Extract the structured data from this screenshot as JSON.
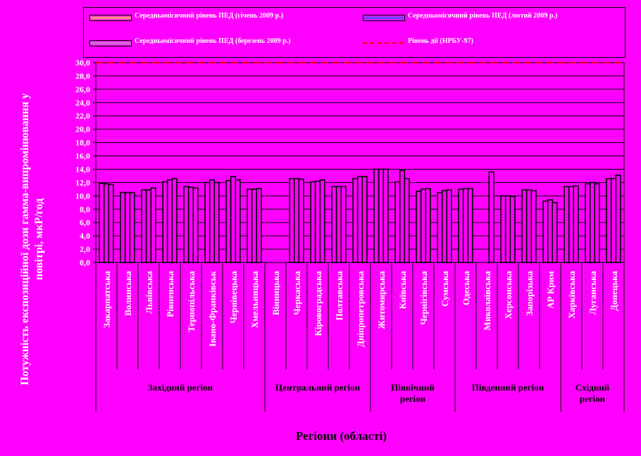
{
  "legend": {
    "jan": "Середньомісячний рівень ПЕД (січень 2009 р.)",
    "feb": "Середньомісячний рівень ПЕД (лютий 2009 р.)",
    "mar": "Середньомісячний рівень ПЕД (березень 2009 р.)",
    "level": "Рівень дії (НРБУ-97)"
  },
  "colors": {
    "background": "#ff00ff",
    "bar_fill": "#ff00ff",
    "bar_edge": "#000000",
    "level_line": "#ff0000",
    "axis_text": "#ffffff"
  },
  "chart_data": {
    "type": "bar",
    "title": "",
    "ylabel": "Потужність експозиційної дози гамма-випромінювання у повітрі, мкР/год",
    "xlabel": "Регіони (області)",
    "ylim": [
      0,
      30
    ],
    "yticks": [
      "0,0",
      "2,0",
      "4,0",
      "6,0",
      "8,0",
      "10,0",
      "12,0",
      "14,0",
      "16,0",
      "18,0",
      "20,0",
      "22,0",
      "24,0",
      "26,0",
      "28,0",
      "30,0"
    ],
    "categories": [
      "Закарпатська",
      "Волинська",
      "Львівська",
      "Рівненська",
      "Тернопільська",
      "Івано-Франківськ",
      "Чернівецька",
      "Хмельницька",
      "Вінницька",
      "Черкаська",
      "Кіровоградська",
      "Полтавська",
      "Дніпропетровська",
      "Житомирська",
      "Київська",
      "Чернігівська",
      "Сумська",
      "Одеська",
      "Миколаївська",
      "Херсонська",
      "Запорізька",
      "АР Крим",
      "Харківська",
      "Луганська",
      "Донецька"
    ],
    "series": [
      {
        "name": "Середньомісячний рівень ПЕД (січень 2009 р.)",
        "values": [
          11.9,
          10.5,
          10.9,
          12.1,
          11.4,
          12.0,
          12.3,
          11.0,
          null,
          12.6,
          12.1,
          11.4,
          12.6,
          14.0,
          12.1,
          10.7,
          10.5,
          11.0,
          null,
          10.0,
          10.9,
          9.2,
          11.4,
          11.8,
          12.6
        ]
      },
      {
        "name": "Середньомісячний рівень ПЕД (лютий 2009 р.)",
        "values": [
          11.8,
          10.5,
          10.9,
          12.4,
          11.3,
          12.4,
          12.9,
          11.0,
          null,
          12.6,
          12.2,
          11.4,
          12.9,
          14.0,
          13.8,
          11.0,
          10.8,
          11.1,
          null,
          10.0,
          10.9,
          9.4,
          11.4,
          12.0,
          12.6
        ]
      },
      {
        "name": "Середньомісячний рівень ПЕД (березень 2009 р.)",
        "values": [
          11.7,
          10.5,
          11.2,
          12.6,
          11.2,
          12.0,
          12.4,
          11.1,
          null,
          12.5,
          12.4,
          11.4,
          12.9,
          14.0,
          12.6,
          11.1,
          10.9,
          11.1,
          13.6,
          9.9,
          10.8,
          9.0,
          11.5,
          11.8,
          13.1
        ]
      }
    ],
    "reference_line": {
      "name": "Рівень дії (НРБУ-97)",
      "value": 30
    },
    "groups": [
      {
        "label": "Західний регіон",
        "count": 8
      },
      {
        "label": "Центральний регіон",
        "count": 5
      },
      {
        "label": "Північний регіон",
        "count": 4
      },
      {
        "label": "Південний регіон",
        "count": 5
      },
      {
        "label": "Східний регіон",
        "count": 3
      }
    ],
    "grid": true,
    "legend_position": "top"
  }
}
